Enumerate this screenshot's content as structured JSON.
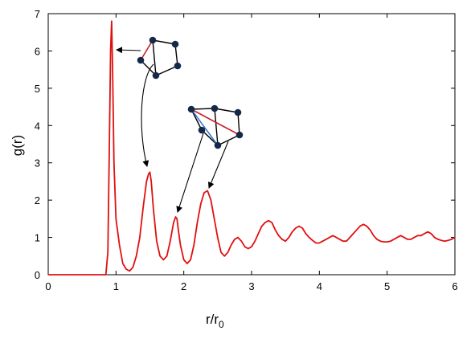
{
  "chart_data": {
    "type": "line",
    "title": "",
    "xlabel": "r/r",
    "xlabel_subscript": "0",
    "ylabel": "g(r)",
    "xlim": [
      0,
      6
    ],
    "ylim": [
      0,
      7
    ],
    "xticks": [
      "0",
      "1",
      "2",
      "3",
      "4",
      "5",
      "6"
    ],
    "yticks": [
      "0",
      "1",
      "2",
      "3",
      "4",
      "5",
      "6",
      "7"
    ],
    "grid": false,
    "line_color": "#e01010",
    "series": [
      {
        "x": [
          0.0,
          0.85,
          0.88,
          0.9,
          0.92,
          0.935,
          0.95,
          0.97,
          1.0,
          1.05,
          1.1,
          1.15,
          1.2,
          1.25,
          1.3,
          1.35,
          1.4,
          1.45,
          1.48,
          1.5,
          1.52,
          1.55,
          1.6,
          1.65,
          1.7,
          1.75,
          1.8,
          1.85,
          1.88,
          1.9,
          1.92,
          1.95,
          2.0,
          2.05,
          2.1,
          2.15,
          2.2,
          2.25,
          2.3,
          2.35,
          2.4,
          2.45,
          2.5,
          2.55,
          2.6,
          2.65,
          2.7,
          2.75,
          2.8,
          2.85,
          2.9,
          2.95,
          3.0,
          3.05,
          3.1,
          3.15,
          3.2,
          3.25,
          3.3,
          3.35,
          3.4,
          3.45,
          3.5,
          3.55,
          3.6,
          3.65,
          3.7,
          3.75,
          3.8,
          3.85,
          3.9,
          3.95,
          4.0,
          4.05,
          4.1,
          4.15,
          4.2,
          4.25,
          4.3,
          4.35,
          4.4,
          4.45,
          4.5,
          4.55,
          4.6,
          4.65,
          4.7,
          4.75,
          4.8,
          4.85,
          4.9,
          4.95,
          5.0,
          5.05,
          5.1,
          5.15,
          5.2,
          5.25,
          5.3,
          5.35,
          5.4,
          5.45,
          5.5,
          5.55,
          5.6,
          5.65,
          5.7,
          5.75,
          5.8,
          5.85,
          5.9,
          5.95,
          6.0
        ],
        "y": [
          0.0,
          0.0,
          0.6,
          3.2,
          6.0,
          6.8,
          5.5,
          3.0,
          1.5,
          0.8,
          0.3,
          0.15,
          0.1,
          0.2,
          0.5,
          1.0,
          1.8,
          2.5,
          2.7,
          2.75,
          2.5,
          1.8,
          0.9,
          0.5,
          0.4,
          0.5,
          0.9,
          1.4,
          1.55,
          1.5,
          1.2,
          0.8,
          0.4,
          0.3,
          0.4,
          0.8,
          1.4,
          1.9,
          2.2,
          2.25,
          2.0,
          1.5,
          1.0,
          0.6,
          0.5,
          0.6,
          0.8,
          0.95,
          1.0,
          0.9,
          0.75,
          0.7,
          0.75,
          0.9,
          1.1,
          1.3,
          1.4,
          1.45,
          1.4,
          1.2,
          1.05,
          0.95,
          0.9,
          1.0,
          1.15,
          1.25,
          1.3,
          1.25,
          1.1,
          1.0,
          0.92,
          0.85,
          0.85,
          0.9,
          0.95,
          1.0,
          1.05,
          1.0,
          0.95,
          0.9,
          0.9,
          1.0,
          1.1,
          1.2,
          1.3,
          1.35,
          1.3,
          1.2,
          1.05,
          0.95,
          0.9,
          0.88,
          0.88,
          0.9,
          0.95,
          1.0,
          1.05,
          1.0,
          0.95,
          0.95,
          1.0,
          1.05,
          1.05,
          1.1,
          1.15,
          1.1,
          1.0,
          0.95,
          0.92,
          0.9,
          0.92,
          0.95,
          1.0
        ]
      }
    ],
    "annotations": {
      "arrow_color": "#000000",
      "atom_color": "#14284a",
      "bond_color": "#000000",
      "highlight_red": "#c8202a",
      "highlight_blue": "#3a78c8"
    }
  }
}
